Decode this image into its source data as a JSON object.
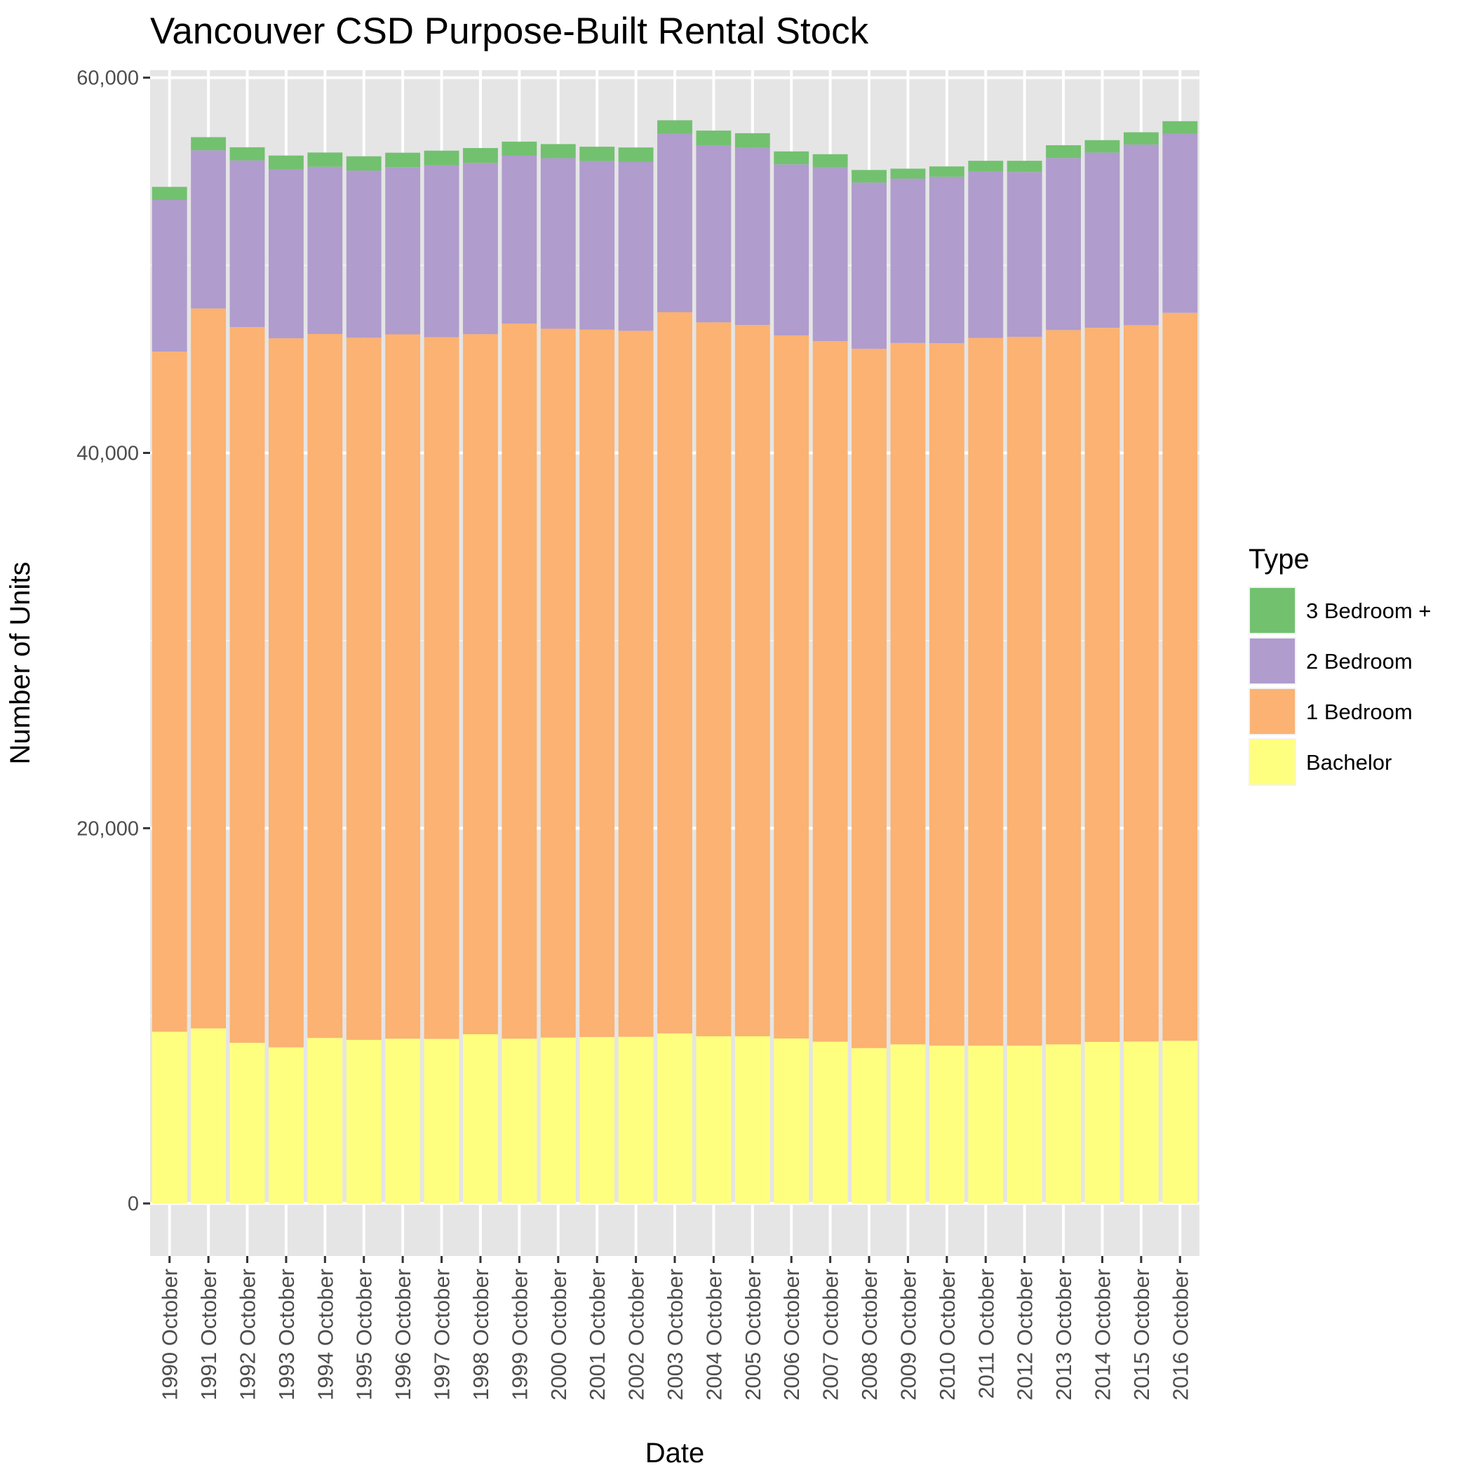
{
  "chart_data": {
    "type": "bar",
    "stacked": true,
    "title": "Vancouver CSD Purpose-Built Rental Stock",
    "xlabel": "Date",
    "ylabel": "Number of Units",
    "ylim": [
      -2800,
      60400
    ],
    "y_ticks": [
      0,
      20000,
      40000,
      60000
    ],
    "y_tick_labels": [
      "0",
      "20,000",
      "40,000",
      "60,000"
    ],
    "grid": true,
    "legend_position": "right",
    "legend_title": "Type",
    "background": "#e5e5e5",
    "categories": [
      "1990 October",
      "1991 October",
      "1992 October",
      "1993 October",
      "1994 October",
      "1995 October",
      "1996 October",
      "1997 October",
      "1998 October",
      "1999 October",
      "2000 October",
      "2001 October",
      "2002 October",
      "2003 October",
      "2004 October",
      "2005 October",
      "2006 October",
      "2007 October",
      "2008 October",
      "2009 October",
      "2010 October",
      "2011 October",
      "2012 October",
      "2013 October",
      "2014 October",
      "2015 October",
      "2016 October"
    ],
    "series": [
      {
        "name": "Bachelor",
        "color": "#ffff7f",
        "values": [
          9150,
          9330,
          8560,
          8320,
          8820,
          8720,
          8780,
          8770,
          9020,
          8780,
          8840,
          8870,
          8880,
          9060,
          8910,
          8910,
          8790,
          8620,
          8280,
          8480,
          8410,
          8410,
          8410,
          8480,
          8610,
          8630,
          8670
        ]
      },
      {
        "name": "1 Bedroom",
        "color": "#fbb272",
        "values": [
          36250,
          38370,
          38150,
          37790,
          37520,
          37420,
          37540,
          37400,
          37310,
          38110,
          37780,
          37700,
          37630,
          38440,
          38050,
          37910,
          37470,
          37340,
          37270,
          37380,
          37440,
          37720,
          37780,
          38070,
          38060,
          38180,
          38800
        ]
      },
      {
        "name": "2 Bedroom",
        "color": "#b09ccd",
        "values": [
          8080,
          8430,
          8880,
          9000,
          8910,
          8910,
          8910,
          9150,
          9130,
          8950,
          9090,
          8990,
          9010,
          9500,
          9440,
          9440,
          9120,
          9280,
          8860,
          8760,
          8870,
          8860,
          8780,
          9170,
          9340,
          9630,
          9530
        ]
      },
      {
        "name": "3 Bedroom +",
        "color": "#72c16f",
        "values": [
          700,
          700,
          700,
          740,
          760,
          760,
          770,
          790,
          790,
          750,
          750,
          760,
          760,
          730,
          780,
          780,
          690,
          680,
          670,
          530,
          550,
          580,
          600,
          680,
          660,
          650,
          680
        ]
      }
    ],
    "legend_order": [
      "3 Bedroom +",
      "2 Bedroom",
      "1 Bedroom",
      "Bachelor"
    ]
  }
}
